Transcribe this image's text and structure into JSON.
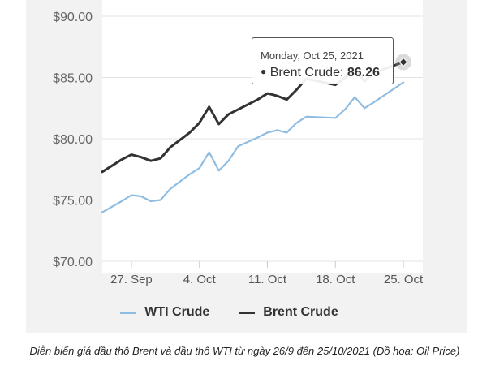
{
  "chart_data": {
    "type": "line",
    "ylim": [
      70,
      90
    ],
    "xlim": [
      "2021-09-24",
      "2021-10-27"
    ],
    "y_ticks": [
      "$70.00",
      "$75.00",
      "$80.00",
      "$85.00",
      "$90.00"
    ],
    "y_tick_values": [
      70,
      75,
      80,
      85,
      90
    ],
    "x_ticks": [
      "27. Sep",
      "4. Oct",
      "11. Oct",
      "18. Oct",
      "25. Oct"
    ],
    "x_tick_dates": [
      "2021-09-27",
      "2021-10-04",
      "2021-10-11",
      "2021-10-18",
      "2021-10-25"
    ],
    "grid": "horizontal",
    "legend_position": "bottom",
    "series": [
      {
        "name": "WTI Crude",
        "color": "#8fbde2",
        "points": [
          [
            "2021-09-24",
            74.0
          ],
          [
            "2021-09-26",
            74.9
          ],
          [
            "2021-09-27",
            75.4
          ],
          [
            "2021-09-28",
            75.3
          ],
          [
            "2021-09-29",
            74.9
          ],
          [
            "2021-09-30",
            75.0
          ],
          [
            "2021-10-01",
            75.9
          ],
          [
            "2021-10-03",
            77.1
          ],
          [
            "2021-10-04",
            77.6
          ],
          [
            "2021-10-05",
            78.9
          ],
          [
            "2021-10-06",
            77.4
          ],
          [
            "2021-10-07",
            78.2
          ],
          [
            "2021-10-08",
            79.4
          ],
          [
            "2021-10-10",
            80.1
          ],
          [
            "2021-10-11",
            80.5
          ],
          [
            "2021-10-12",
            80.7
          ],
          [
            "2021-10-13",
            80.5
          ],
          [
            "2021-10-14",
            81.3
          ],
          [
            "2021-10-15",
            81.8
          ],
          [
            "2021-10-18",
            81.7
          ],
          [
            "2021-10-19",
            82.4
          ],
          [
            "2021-10-20",
            83.4
          ],
          [
            "2021-10-21",
            82.5
          ],
          [
            "2021-10-22",
            83.0
          ],
          [
            "2021-10-25",
            84.6
          ]
        ]
      },
      {
        "name": "Brent Crude",
        "color": "#333333",
        "points": [
          [
            "2021-09-24",
            77.3
          ],
          [
            "2021-09-26",
            78.3
          ],
          [
            "2021-09-27",
            78.7
          ],
          [
            "2021-09-28",
            78.5
          ],
          [
            "2021-09-29",
            78.2
          ],
          [
            "2021-09-30",
            78.4
          ],
          [
            "2021-10-01",
            79.3
          ],
          [
            "2021-10-03",
            80.5
          ],
          [
            "2021-10-04",
            81.3
          ],
          [
            "2021-10-05",
            82.6
          ],
          [
            "2021-10-06",
            81.2
          ],
          [
            "2021-10-07",
            82.0
          ],
          [
            "2021-10-08",
            82.4
          ],
          [
            "2021-10-10",
            83.2
          ],
          [
            "2021-10-11",
            83.7
          ],
          [
            "2021-10-12",
            83.5
          ],
          [
            "2021-10-13",
            83.2
          ],
          [
            "2021-10-14",
            84.0
          ],
          [
            "2021-10-15",
            84.9
          ],
          [
            "2021-10-18",
            84.4
          ],
          [
            "2021-10-19",
            85.0
          ],
          [
            "2021-10-20",
            85.6
          ],
          [
            "2021-10-21",
            84.7
          ],
          [
            "2021-10-22",
            85.4
          ],
          [
            "2021-10-25",
            86.26
          ]
        ]
      }
    ],
    "tooltip": {
      "date": "Monday, Oct 25, 2021",
      "series": "Brent Crude",
      "value_label": "86.26",
      "point_date": "2021-10-25",
      "value": 86.26
    }
  },
  "legend": {
    "wti_label": "WTI Crude",
    "brent_label": "Brent Crude"
  },
  "tooltip": {
    "date": "Monday, Oct 25, 2021",
    "series_label": "Brent Crude:",
    "value": "86.26"
  },
  "caption": "Diễn biến giá dầu thô Brent và dầu thô WTI từ ngày 26/9 đến 25/10/2021 (Đồ hoạ: Oil Price)"
}
